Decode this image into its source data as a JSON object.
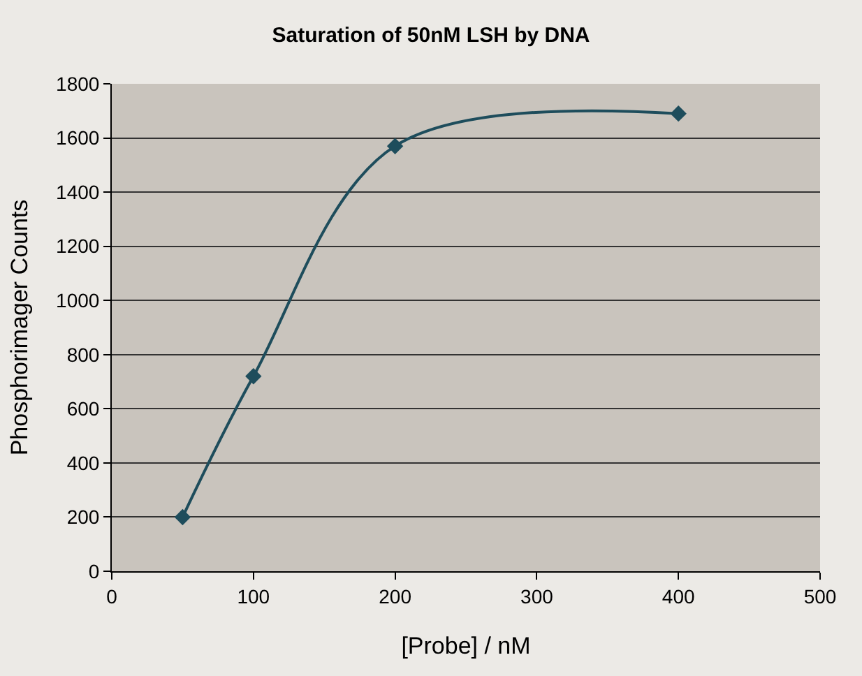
{
  "chart_data": {
    "type": "line",
    "title": "Saturation of 50nM LSH by DNA",
    "xlabel": "[Probe] / nM",
    "ylabel": "Phosphorimager Counts",
    "x": [
      50,
      100,
      200,
      400
    ],
    "series": [
      {
        "color": "#1e4d5c",
        "values": [
          200,
          720,
          1570,
          1690
        ]
      }
    ],
    "xlim": [
      0,
      500
    ],
    "xticks": [
      0,
      100,
      200,
      300,
      400,
      500
    ],
    "ylim": [
      0,
      1800
    ],
    "yticks": [
      0,
      200,
      400,
      600,
      800,
      1000,
      1200,
      1400,
      1600,
      1800
    ],
    "grid": "y",
    "marker": "diamond",
    "line_style": "solid"
  }
}
